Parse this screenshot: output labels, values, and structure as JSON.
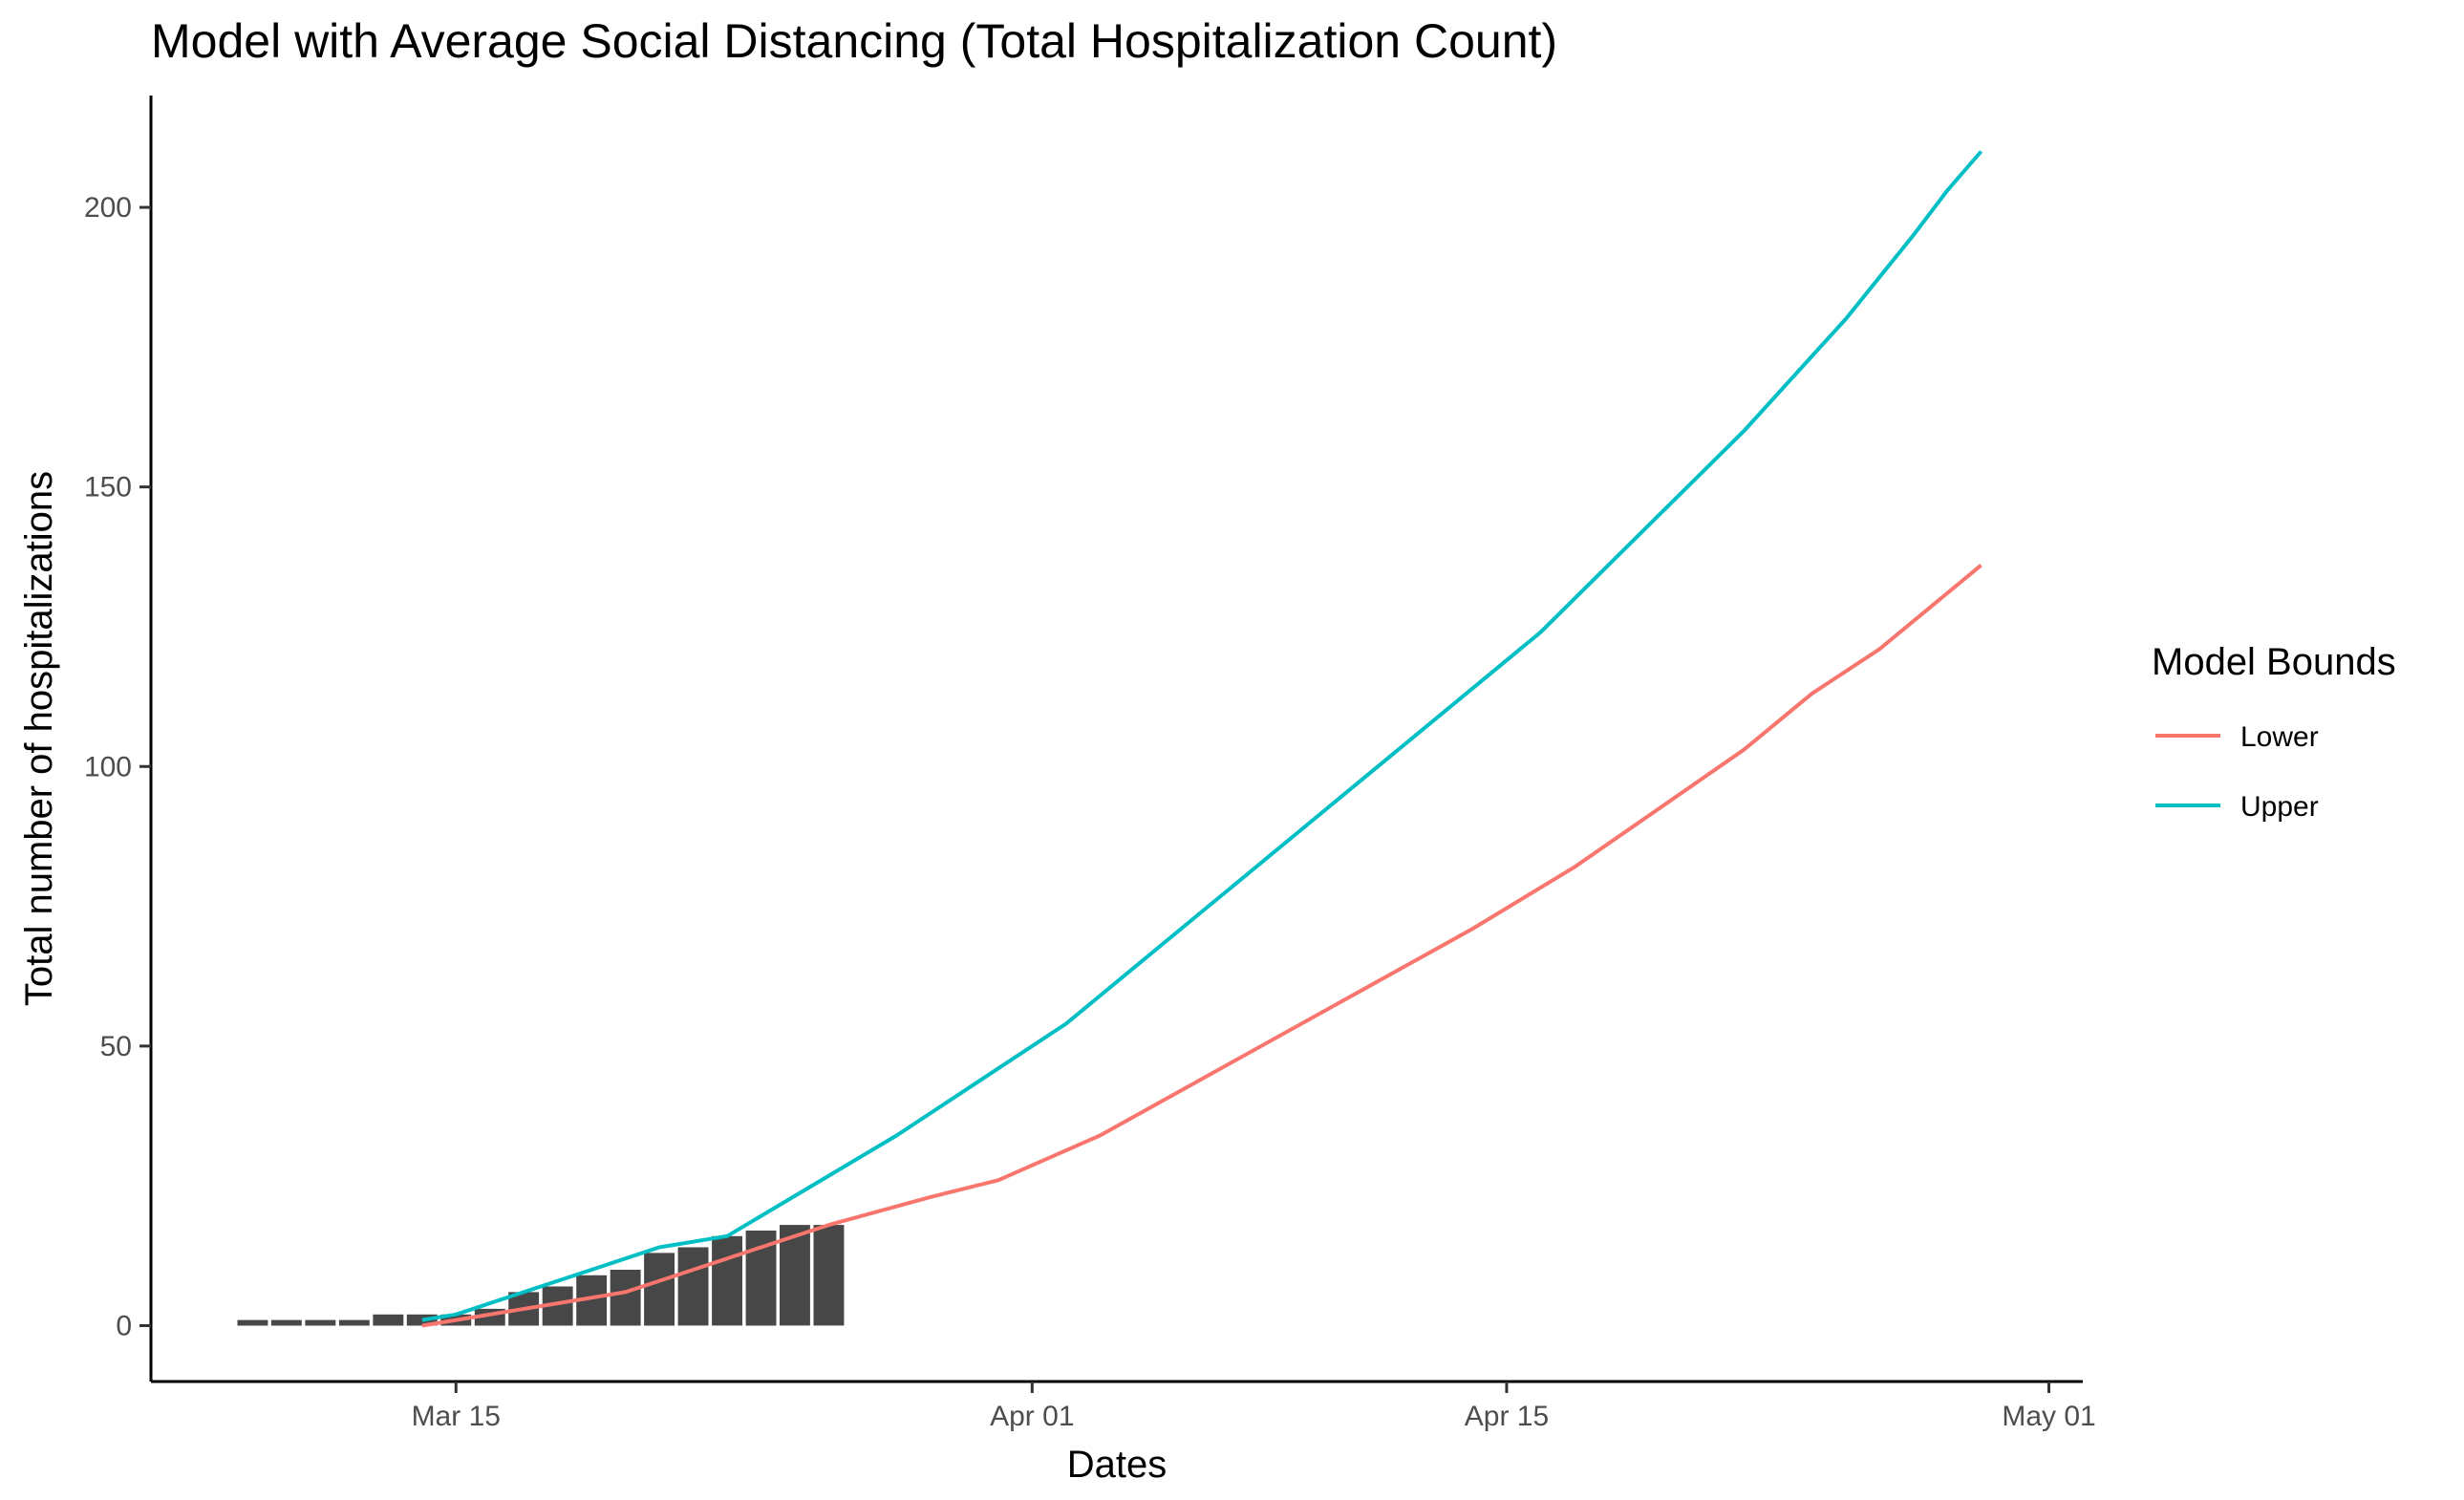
{
  "chart_data": {
    "type": "bar+line",
    "title": "Model with Average Social Distancing (Total Hospitalization Count)",
    "xlabel": "Dates",
    "ylabel": "Total number of hospitalizations",
    "x_axis": {
      "type": "date",
      "range": [
        "2020-03-06",
        "2020-05-02"
      ],
      "ticks": [
        {
          "date": "2020-03-15",
          "label": "Mar 15"
        },
        {
          "date": "2020-04-01",
          "label": "Apr 01"
        },
        {
          "date": "2020-04-15",
          "label": "Apr 15"
        },
        {
          "date": "2020-05-01",
          "label": "May 01"
        }
      ]
    },
    "y_axis": {
      "range": [
        -10,
        220
      ],
      "ticks": [
        {
          "value": 0,
          "label": "0"
        },
        {
          "value": 50,
          "label": "50"
        },
        {
          "value": 100,
          "label": "100"
        },
        {
          "value": 150,
          "label": "150"
        },
        {
          "value": 200,
          "label": "200"
        }
      ]
    },
    "grid": false,
    "legend": {
      "title": "Model Bounds",
      "placement": "right",
      "entries": [
        {
          "label": "Lower",
          "color": "#F8766D"
        },
        {
          "label": "Upper",
          "color": "#00BFC4"
        }
      ]
    },
    "bars": {
      "color": "#474747",
      "dates": [
        "2020-03-09",
        "2020-03-10",
        "2020-03-11",
        "2020-03-12",
        "2020-03-13",
        "2020-03-14",
        "2020-03-15",
        "2020-03-16",
        "2020-03-17",
        "2020-03-18",
        "2020-03-19",
        "2020-03-20",
        "2020-03-21",
        "2020-03-22",
        "2020-03-23",
        "2020-03-24",
        "2020-03-25",
        "2020-03-26"
      ],
      "values": [
        1,
        1,
        1,
        1,
        2,
        2,
        2,
        3,
        6,
        7,
        9,
        10,
        13,
        14,
        16,
        17,
        18,
        18
      ]
    },
    "series": [
      {
        "name": "Lower",
        "color": "#F8766D",
        "points": [
          {
            "date": "2020-03-14",
            "value": 0
          },
          {
            "date": "2020-03-16",
            "value": 2
          },
          {
            "date": "2020-03-18",
            "value": 4
          },
          {
            "date": "2020-03-20",
            "value": 6
          },
          {
            "date": "2020-03-22",
            "value": 10
          },
          {
            "date": "2020-03-24",
            "value": 14
          },
          {
            "date": "2020-03-26",
            "value": 18
          },
          {
            "date": "2020-03-29",
            "value": 23
          },
          {
            "date": "2020-03-31",
            "value": 26
          },
          {
            "date": "2020-04-03",
            "value": 34
          },
          {
            "date": "2020-04-14",
            "value": 71
          },
          {
            "date": "2020-04-17",
            "value": 82
          },
          {
            "date": "2020-04-22",
            "value": 103
          },
          {
            "date": "2020-04-24",
            "value": 113
          },
          {
            "date": "2020-04-26",
            "value": 121
          },
          {
            "date": "2020-04-29",
            "value": 136
          }
        ]
      },
      {
        "name": "Upper",
        "color": "#00BFC4",
        "points": [
          {
            "date": "2020-03-14",
            "value": 1
          },
          {
            "date": "2020-03-15",
            "value": 2
          },
          {
            "date": "2020-03-17",
            "value": 6
          },
          {
            "date": "2020-03-19",
            "value": 10
          },
          {
            "date": "2020-03-21",
            "value": 14
          },
          {
            "date": "2020-03-23",
            "value": 16
          },
          {
            "date": "2020-03-28",
            "value": 34
          },
          {
            "date": "2020-04-02",
            "value": 54
          },
          {
            "date": "2020-04-16",
            "value": 124
          },
          {
            "date": "2020-04-22",
            "value": 160
          },
          {
            "date": "2020-04-25",
            "value": 180
          },
          {
            "date": "2020-04-27",
            "value": 195
          },
          {
            "date": "2020-04-28",
            "value": 203
          },
          {
            "date": "2020-04-29",
            "value": 210
          }
        ]
      }
    ]
  }
}
